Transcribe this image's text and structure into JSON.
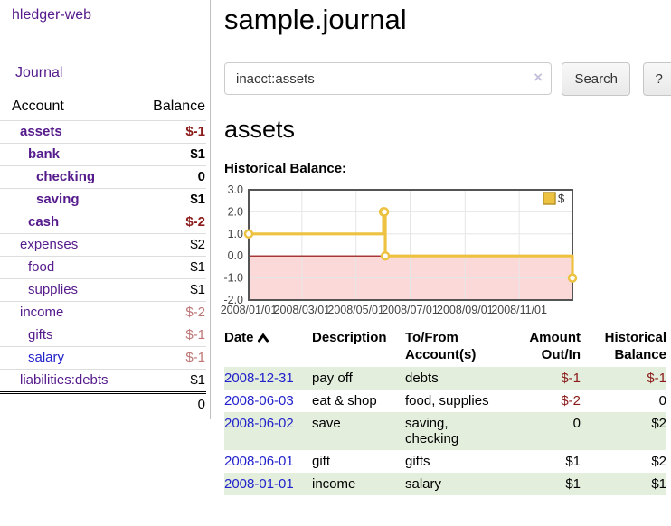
{
  "app": {
    "brand": "hledger-web"
  },
  "colors": {
    "link_purple": "#551a8b",
    "link_blue": "#2222cc",
    "negative_strong": "#8b1a1a",
    "negative_soft": "#bd7575",
    "row_shade_green": "#e3eedc",
    "chart_line": "#edc240"
  },
  "sidebar": {
    "journal_label": "Journal",
    "account_header": "Account",
    "balance_header": "Balance",
    "accounts": [
      {
        "account": "assets",
        "balance": "$-1",
        "level": 1,
        "bold": true,
        "negative": "strong",
        "link_state": "visited"
      },
      {
        "account": "bank",
        "balance": "$1",
        "level": 2,
        "bold": true,
        "negative": null,
        "link_state": "visited"
      },
      {
        "account": "checking",
        "balance": "0",
        "level": 3,
        "bold": true,
        "negative": null,
        "link_state": "visited"
      },
      {
        "account": "saving",
        "balance": "$1",
        "level": 3,
        "bold": true,
        "negative": null,
        "link_state": "visited"
      },
      {
        "account": "cash",
        "balance": "$-2",
        "level": 2,
        "bold": true,
        "negative": "strong",
        "link_state": "visited"
      },
      {
        "account": "expenses",
        "balance": "$2",
        "level": 1,
        "bold": false,
        "negative": null,
        "link_state": "visited"
      },
      {
        "account": "food",
        "balance": "$1",
        "level": 2,
        "bold": false,
        "negative": null,
        "link_state": "visited"
      },
      {
        "account": "supplies",
        "balance": "$1",
        "level": 2,
        "bold": false,
        "negative": null,
        "link_state": "visited"
      },
      {
        "account": "income",
        "balance": "$-2",
        "level": 1,
        "bold": false,
        "negative": "soft",
        "link_state": "visited"
      },
      {
        "account": "gifts",
        "balance": "$-1",
        "level": 2,
        "bold": false,
        "negative": "soft",
        "link_state": "visited"
      },
      {
        "account": "salary",
        "balance": "$-1",
        "level": 2,
        "bold": false,
        "negative": "soft",
        "link_state": "unvisited"
      },
      {
        "account": "liabilities:debts",
        "balance": "$1",
        "level": 1,
        "bold": false,
        "negative": null,
        "link_state": "visited"
      }
    ],
    "total": "0"
  },
  "main": {
    "title": "sample.journal",
    "search": {
      "value": "inacct:assets",
      "clear_icon": "×",
      "button_label": "Search",
      "help_label": "?"
    },
    "account_heading": "assets"
  },
  "chart_data": {
    "type": "line",
    "title": "Historical Balance:",
    "step": true,
    "series": [
      {
        "name": "$",
        "x": [
          "2008-01-01",
          "2008-06-01",
          "2008-06-02",
          "2008-06-03",
          "2008-12-31"
        ],
        "y": [
          1,
          2,
          2,
          0,
          -1
        ]
      }
    ],
    "x_domain": [
      "2008-01-01",
      "2008-12-31"
    ],
    "x_ticks": [
      "2008/01/01",
      "2008/03/01",
      "2008/05/01",
      "2008/07/01",
      "2008/09/01",
      "2008/11/01"
    ],
    "y_ticks": [
      3.0,
      2.0,
      1.0,
      0.0,
      -1.0,
      -2.0
    ],
    "ylim": [
      -2,
      3
    ],
    "grid": true,
    "legend_position": "top-right",
    "line_color": "#edc240",
    "point_fill": "#ffffff",
    "negative_region_color": "#fbd9d9",
    "zero_line_color": "#8b0000",
    "border_color": "#545454",
    "grid_color": "#e6e6e6",
    "label_color": "#444444"
  },
  "register": {
    "headers": {
      "date": "Date",
      "description": "Description",
      "accounts": "To/From Account(s)",
      "amount": "Amount Out/In",
      "balance": "Historical Balance"
    },
    "rows": [
      {
        "date": "2008-12-31",
        "description": "pay off",
        "accounts": "debts",
        "amount": "$-1",
        "balance": "$-1",
        "amount_negative": true,
        "balance_negative": true,
        "shaded": true
      },
      {
        "date": "2008-06-03",
        "description": "eat & shop",
        "accounts": "food, supplies",
        "amount": "$-2",
        "balance": "0",
        "amount_negative": true,
        "balance_negative": false,
        "shaded": false
      },
      {
        "date": "2008-06-02",
        "description": "save",
        "accounts": "saving, checking",
        "amount": "0",
        "balance": "$2",
        "amount_negative": false,
        "balance_negative": false,
        "shaded": true
      },
      {
        "date": "2008-06-01",
        "description": "gift",
        "accounts": "gifts",
        "amount": "$1",
        "balance": "$2",
        "amount_negative": false,
        "balance_negative": false,
        "shaded": false
      },
      {
        "date": "2008-01-01",
        "description": "income",
        "accounts": "salary",
        "amount": "$1",
        "balance": "$1",
        "amount_negative": false,
        "balance_negative": false,
        "shaded": true
      }
    ]
  }
}
